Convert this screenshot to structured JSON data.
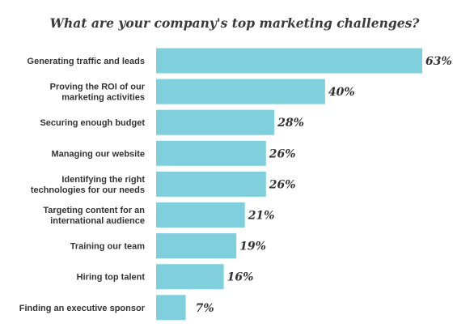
{
  "chart_data": {
    "type": "bar",
    "orientation": "horizontal",
    "title": "What are your company's top marketing challenges?",
    "categories": [
      "Generating traffic and leads",
      "Proving the ROI of our marketing activities",
      "Securing enough budget",
      "Managing our website",
      "Identifying the right technologies for our needs",
      "Targeting content for an international audience",
      "Training our team",
      "Hiring top talent",
      "Finding an executive sponsor"
    ],
    "category_lines": [
      [
        "Generating traffic and leads"
      ],
      [
        "Proving the ROI of our",
        "marketing activities"
      ],
      [
        "Securing enough budget"
      ],
      [
        "Managing our website"
      ],
      [
        "Identifying the right",
        "technologies for our needs"
      ],
      [
        "Targeting content for an",
        "international audience"
      ],
      [
        "Training our team"
      ],
      [
        "Hiring top talent"
      ],
      [
        "Finding an executive sponsor"
      ]
    ],
    "values": [
      63,
      40,
      28,
      26,
      26,
      21,
      19,
      16,
      7
    ],
    "value_labels": [
      "63%",
      "40%",
      "28%",
      "26%",
      "26%",
      "21%",
      "19%",
      "16%",
      "7%"
    ],
    "unit": "%",
    "xlim": [
      0,
      63
    ],
    "grid": false,
    "legend": "none",
    "bar_color": "#7fd0dc"
  }
}
